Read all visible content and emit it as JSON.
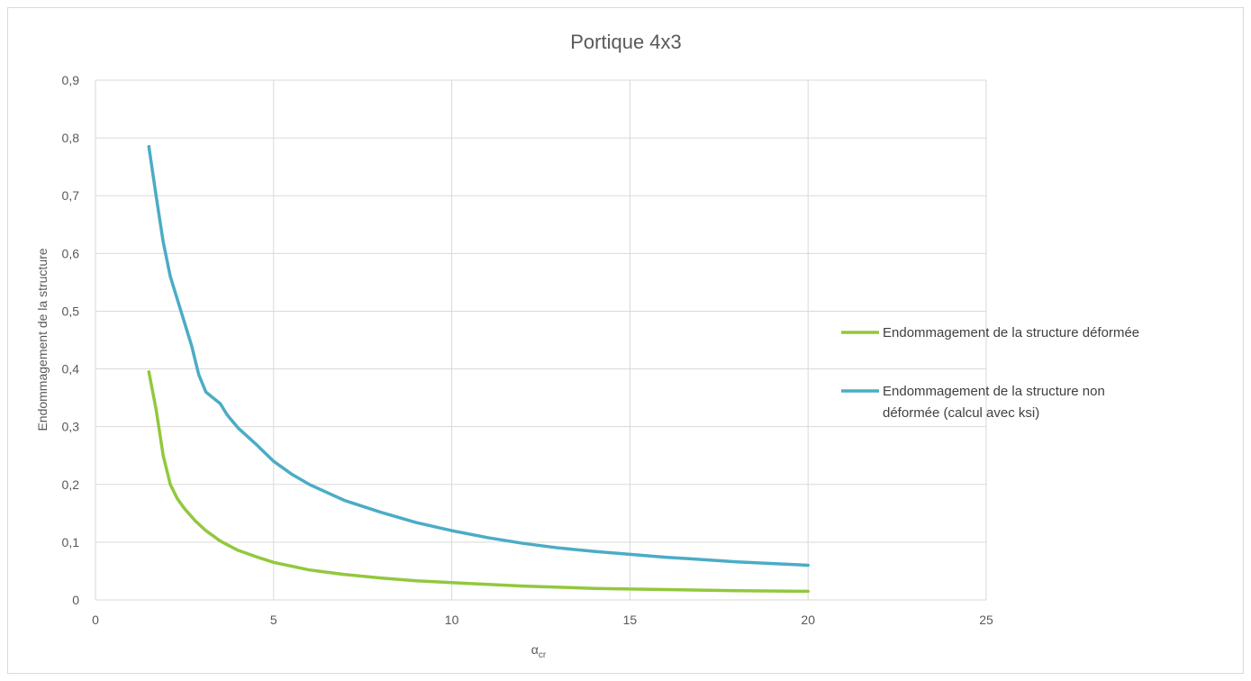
{
  "chart_data": {
    "type": "line",
    "title": "Portique 4x3",
    "xlabel_main": "α",
    "xlabel_sub": "cr",
    "ylabel": "Endommagement de la structure",
    "xlim": [
      0,
      25
    ],
    "ylim": [
      0,
      0.9
    ],
    "xticks": [
      0,
      5,
      10,
      15,
      20,
      25
    ],
    "yticks": [
      0,
      0.1,
      0.2,
      0.3,
      0.4,
      0.5,
      0.6,
      0.7,
      0.8,
      0.9
    ],
    "xtick_labels": [
      "0",
      "5",
      "10",
      "15",
      "20",
      "25"
    ],
    "ytick_labels": [
      "0",
      "0,1",
      "0,2",
      "0,3",
      "0,4",
      "0,5",
      "0,6",
      "0,7",
      "0,8",
      "0,9"
    ],
    "grid": true,
    "legend_position": "right",
    "series": [
      {
        "name": "Endommagement de la structure déformée",
        "legend_lines": [
          "Endommagement de la structure déformée"
        ],
        "color": "#92c83e",
        "points": [
          [
            1.5,
            0.395
          ],
          [
            1.7,
            0.33
          ],
          [
            1.9,
            0.25
          ],
          [
            2.1,
            0.2
          ],
          [
            2.3,
            0.175
          ],
          [
            2.5,
            0.158
          ],
          [
            2.8,
            0.137
          ],
          [
            3.1,
            0.12
          ],
          [
            3.5,
            0.102
          ],
          [
            4.0,
            0.086
          ],
          [
            4.5,
            0.075
          ],
          [
            5.0,
            0.065
          ],
          [
            6.0,
            0.052
          ],
          [
            7.0,
            0.044
          ],
          [
            8.0,
            0.038
          ],
          [
            9.0,
            0.033
          ],
          [
            10.0,
            0.03
          ],
          [
            12.0,
            0.024
          ],
          [
            14.0,
            0.02
          ],
          [
            16.0,
            0.018
          ],
          [
            18.0,
            0.016
          ],
          [
            20.0,
            0.015
          ]
        ]
      },
      {
        "name": "Endommagement de la structure non déformée (calcul avec ksi)",
        "legend_lines": [
          "Endommagement de la structure non",
          "déformée (calcul avec ksi)"
        ],
        "color": "#4bacc6",
        "points": [
          [
            1.5,
            0.785
          ],
          [
            1.7,
            0.7
          ],
          [
            1.9,
            0.62
          ],
          [
            2.1,
            0.56
          ],
          [
            2.3,
            0.52
          ],
          [
            2.5,
            0.48
          ],
          [
            2.7,
            0.44
          ],
          [
            2.9,
            0.39
          ],
          [
            3.1,
            0.36
          ],
          [
            3.3,
            0.35
          ],
          [
            3.5,
            0.34
          ],
          [
            3.7,
            0.32
          ],
          [
            4.0,
            0.298
          ],
          [
            4.5,
            0.27
          ],
          [
            5.0,
            0.24
          ],
          [
            5.5,
            0.218
          ],
          [
            6.0,
            0.2
          ],
          [
            7.0,
            0.172
          ],
          [
            8.0,
            0.152
          ],
          [
            9.0,
            0.134
          ],
          [
            10.0,
            0.12
          ],
          [
            11.0,
            0.108
          ],
          [
            12.0,
            0.098
          ],
          [
            13.0,
            0.09
          ],
          [
            14.0,
            0.084
          ],
          [
            15.0,
            0.079
          ],
          [
            16.0,
            0.074
          ],
          [
            17.0,
            0.07
          ],
          [
            18.0,
            0.066
          ],
          [
            19.0,
            0.063
          ],
          [
            20.0,
            0.06
          ]
        ]
      }
    ]
  }
}
